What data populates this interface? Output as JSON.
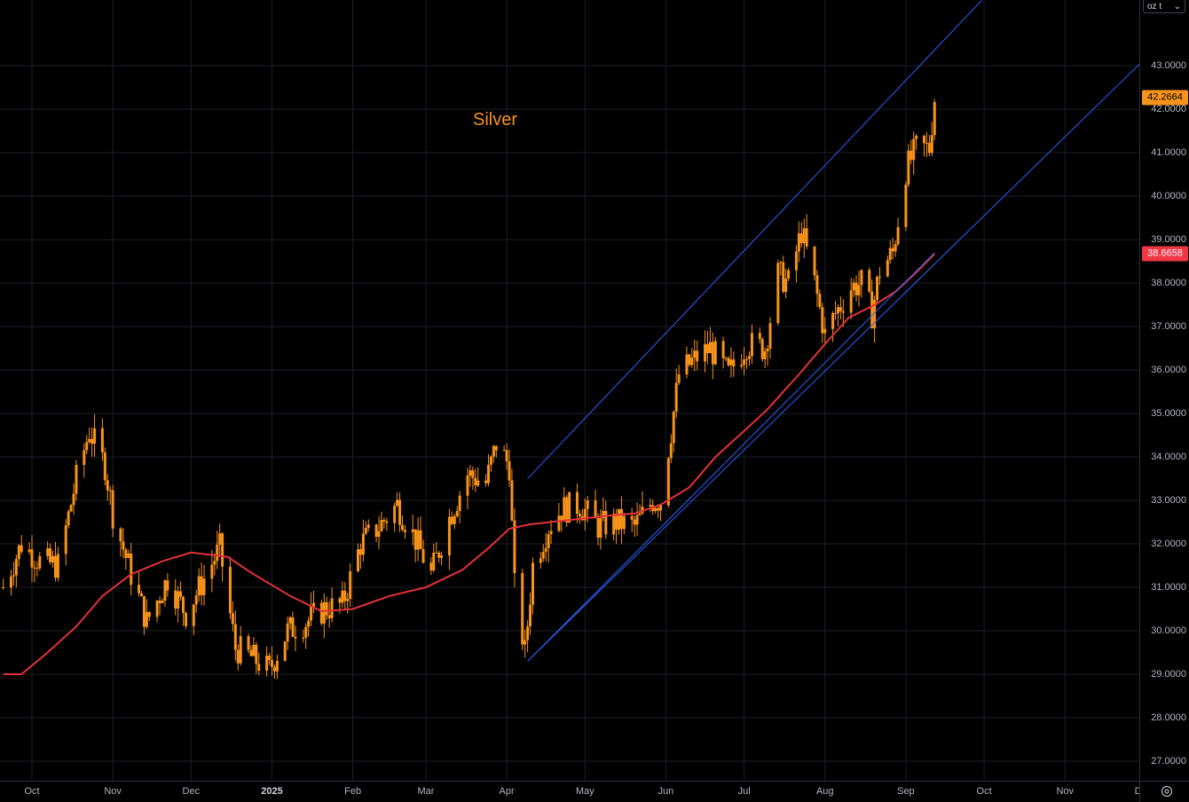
{
  "chart_data": {
    "type": "candlestick",
    "title": "Silver",
    "unit": "oz t",
    "ylim": [
      26.5,
      44.5
    ],
    "y_ticks": [
      "27.0000",
      "28.0000",
      "29.0000",
      "30.0000",
      "31.0000",
      "32.0000",
      "33.0000",
      "34.0000",
      "35.0000",
      "36.0000",
      "37.0000",
      "38.0000",
      "39.0000",
      "40.0000",
      "41.0000",
      "42.0000",
      "43.0000"
    ],
    "x_ticks": [
      {
        "label": "Oct",
        "date": "2024-10-01"
      },
      {
        "label": "Nov",
        "date": "2024-11-01"
      },
      {
        "label": "Dec",
        "date": "2024-12-01"
      },
      {
        "label": "2025",
        "date": "2025-01-01",
        "bold": true
      },
      {
        "label": "Feb",
        "date": "2025-02-01"
      },
      {
        "label": "Mar",
        "date": "2025-03-01"
      },
      {
        "label": "Apr",
        "date": "2025-04-01"
      },
      {
        "label": "May",
        "date": "2025-05-01"
      },
      {
        "label": "Jun",
        "date": "2025-06-01"
      },
      {
        "label": "Jul",
        "date": "2025-07-01"
      },
      {
        "label": "Aug",
        "date": "2025-08-01"
      },
      {
        "label": "Sep",
        "date": "2025-09-01"
      },
      {
        "label": "Oct",
        "date": "2025-10-01"
      },
      {
        "label": "Nov",
        "date": "2025-11-01"
      },
      {
        "label": "Dec",
        "date": "2025-12-01"
      }
    ],
    "price_anchors": [
      [
        "2024-09-20",
        31.0
      ],
      [
        "2024-09-27",
        32.0
      ],
      [
        "2024-10-04",
        31.6
      ],
      [
        "2024-10-11",
        31.5
      ],
      [
        "2024-10-18",
        33.5
      ],
      [
        "2024-10-23",
        34.6
      ],
      [
        "2024-10-29",
        33.8
      ],
      [
        "2024-11-01",
        32.7
      ],
      [
        "2024-11-08",
        31.3
      ],
      [
        "2024-11-14",
        30.2
      ],
      [
        "2024-11-22",
        31.2
      ],
      [
        "2024-11-29",
        30.4
      ],
      [
        "2024-12-06",
        31.2
      ],
      [
        "2024-12-12",
        31.9
      ],
      [
        "2024-12-18",
        29.6
      ],
      [
        "2024-12-24",
        29.4
      ],
      [
        "2024-12-31",
        29.1
      ],
      [
        "2025-01-07",
        30.0
      ],
      [
        "2025-01-14",
        30.2
      ],
      [
        "2025-01-21",
        30.5
      ],
      [
        "2025-01-28",
        30.6
      ],
      [
        "2025-02-04",
        32.0
      ],
      [
        "2025-02-11",
        32.4
      ],
      [
        "2025-02-18",
        32.9
      ],
      [
        "2025-02-25",
        32.1
      ],
      [
        "2025-03-03",
        31.3
      ],
      [
        "2025-03-10",
        32.6
      ],
      [
        "2025-03-17",
        33.6
      ],
      [
        "2025-03-24",
        33.4
      ],
      [
        "2025-03-28",
        34.3
      ],
      [
        "2025-04-02",
        33.8
      ],
      [
        "2025-04-04",
        31.0
      ],
      [
        "2025-04-08",
        29.5
      ],
      [
        "2025-04-11",
        31.5
      ],
      [
        "2025-04-17",
        32.4
      ],
      [
        "2025-04-22",
        32.8
      ],
      [
        "2025-04-29",
        32.9
      ],
      [
        "2025-05-06",
        32.4
      ],
      [
        "2025-05-13",
        32.5
      ],
      [
        "2025-05-20",
        32.4
      ],
      [
        "2025-05-27",
        33.0
      ],
      [
        "2025-05-30",
        33.0
      ],
      [
        "2025-06-03",
        34.6
      ],
      [
        "2025-06-06",
        35.9
      ],
      [
        "2025-06-13",
        36.3
      ],
      [
        "2025-06-18",
        36.5
      ],
      [
        "2025-06-25",
        35.9
      ],
      [
        "2025-07-02",
        36.6
      ],
      [
        "2025-07-09",
        36.5
      ],
      [
        "2025-07-14",
        38.2
      ],
      [
        "2025-07-18",
        38.0
      ],
      [
        "2025-07-23",
        39.2
      ],
      [
        "2025-07-28",
        38.0
      ],
      [
        "2025-08-01",
        36.8
      ],
      [
        "2025-08-05",
        37.3
      ],
      [
        "2025-08-11",
        37.9
      ],
      [
        "2025-08-15",
        38.0
      ],
      [
        "2025-08-19",
        37.3
      ],
      [
        "2025-08-22",
        38.3
      ],
      [
        "2025-08-27",
        38.7
      ],
      [
        "2025-09-01",
        40.6
      ],
      [
        "2025-09-05",
        41.1
      ],
      [
        "2025-09-10",
        41.1
      ],
      [
        "2025-09-12",
        42.27
      ]
    ],
    "moving_average": [
      [
        "2024-09-20",
        29.0
      ],
      [
        "2024-09-27",
        29.0
      ],
      [
        "2024-10-07",
        29.5
      ],
      [
        "2024-10-18",
        30.1
      ],
      [
        "2024-10-28",
        30.8
      ],
      [
        "2024-11-08",
        31.3
      ],
      [
        "2024-11-20",
        31.6
      ],
      [
        "2024-12-01",
        31.8
      ],
      [
        "2024-12-15",
        31.7
      ],
      [
        "2024-12-25",
        31.3
      ],
      [
        "2025-01-08",
        30.8
      ],
      [
        "2025-01-20",
        30.45
      ],
      [
        "2025-02-01",
        30.5
      ],
      [
        "2025-02-15",
        30.8
      ],
      [
        "2025-03-01",
        31.0
      ],
      [
        "2025-03-15",
        31.4
      ],
      [
        "2025-03-25",
        31.9
      ],
      [
        "2025-04-02",
        32.35
      ],
      [
        "2025-04-10",
        32.45
      ],
      [
        "2025-04-25",
        32.55
      ],
      [
        "2025-05-10",
        32.65
      ],
      [
        "2025-05-20",
        32.7
      ],
      [
        "2025-05-30",
        32.9
      ],
      [
        "2025-06-10",
        33.3
      ],
      [
        "2025-06-20",
        34.0
      ],
      [
        "2025-07-01",
        34.6
      ],
      [
        "2025-07-10",
        35.1
      ],
      [
        "2025-07-22",
        35.9
      ],
      [
        "2025-08-01",
        36.6
      ],
      [
        "2025-08-10",
        37.2
      ],
      [
        "2025-08-20",
        37.5
      ],
      [
        "2025-08-28",
        37.8
      ],
      [
        "2025-09-05",
        38.25
      ],
      [
        "2025-09-12",
        38.67
      ]
    ],
    "channel_lines": [
      {
        "from": [
          "2025-04-09",
          33.5
        ],
        "to": [
          "2025-09-30",
          44.5
        ]
      },
      {
        "from": [
          "2025-04-09",
          29.3
        ],
        "to": [
          "2025-12-04",
          43.3
        ]
      },
      {
        "from": [
          "2025-04-09",
          29.3
        ],
        "to": [
          "2025-09-12",
          38.7
        ]
      }
    ],
    "last_price": "42.2664",
    "ma_price": "38.6658",
    "colors": {
      "candle": "#f7931a",
      "ma": "#e5303a",
      "channel": "#2962ff",
      "grid": "#1c1f26",
      "title": "#f7931a",
      "ma_badge": "#f23645"
    }
  }
}
